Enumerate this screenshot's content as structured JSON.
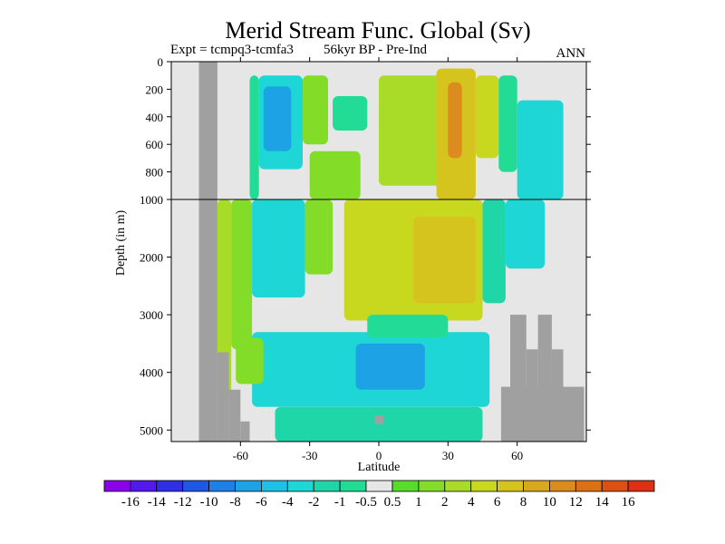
{
  "chart_data": {
    "type": "heatmap",
    "title": "Merid Stream Func. Global (Sv)",
    "subtitle_left": "Expt = tcmpq3-tcmfa3",
    "subtitle_mid": "56kyr BP - Pre-Ind",
    "subtitle_right": "ANN",
    "xlabel": "Latitude",
    "ylabel": "Depth (in m)",
    "xlim": [
      -90,
      90
    ],
    "x_ticks": [
      {
        "value": -60,
        "label": "-60"
      },
      {
        "value": -30,
        "label": "-30"
      },
      {
        "value": 0,
        "label": "0"
      },
      {
        "value": 30,
        "label": "30"
      },
      {
        "value": 60,
        "label": "60"
      }
    ],
    "y_ticks": [
      {
        "value": 0,
        "label": "0"
      },
      {
        "value": 200,
        "label": "200"
      },
      {
        "value": 400,
        "label": "400"
      },
      {
        "value": 600,
        "label": "600"
      },
      {
        "value": 800,
        "label": "800"
      },
      {
        "value": 1000,
        "label": "1000"
      },
      {
        "value": 2000,
        "label": "2000"
      },
      {
        "value": 3000,
        "label": "3000"
      },
      {
        "value": 4000,
        "label": "4000"
      },
      {
        "value": 5000,
        "label": "5000"
      }
    ],
    "y_upper_range": [
      0,
      1000
    ],
    "y_lower_range": [
      1000,
      5200
    ],
    "colorbar": {
      "labels": [
        "-16",
        "-14",
        "-12",
        "-10",
        "-8",
        "-6",
        "-4",
        "-2",
        "-1",
        "-0.5",
        "0.5",
        "1",
        "2",
        "4",
        "6",
        "8",
        "10",
        "12",
        "14",
        "16"
      ],
      "colors": [
        "#8a00e8",
        "#5218ec",
        "#2f30e6",
        "#1f58e4",
        "#1e80e6",
        "#1ea2e6",
        "#1ec0e6",
        "#1ed6d6",
        "#1ed6a8",
        "#22dc96",
        "#e6e6e6",
        "#58dc2c",
        "#82dc28",
        "#a8dc28",
        "#c8d81e",
        "#d6c41e",
        "#d8a81e",
        "#dc8c1e",
        "#dc7014",
        "#dc5014",
        "#dc3014"
      ]
    },
    "land": [
      {
        "lat": [
          -78,
          -70
        ],
        "depth": [
          0,
          5200
        ]
      },
      {
        "lat": [
          -70,
          -65
        ],
        "depth": [
          3650,
          5200
        ]
      },
      {
        "lat": [
          -65,
          -60
        ],
        "depth": [
          4300,
          5200
        ]
      },
      {
        "lat": [
          -60,
          -56
        ],
        "depth": [
          4850,
          5200
        ]
      },
      {
        "lat": [
          -2,
          2
        ],
        "depth": [
          4750,
          4900
        ]
      },
      {
        "lat": [
          53,
          89
        ],
        "depth": [
          4250,
          5200
        ]
      },
      {
        "lat": [
          57,
          64
        ],
        "depth": [
          3000,
          5200
        ]
      },
      {
        "lat": [
          64,
          69
        ],
        "depth": [
          3600,
          5200
        ]
      },
      {
        "lat": [
          69,
          75
        ],
        "depth": [
          3000,
          5200
        ]
      },
      {
        "lat": [
          75,
          80
        ],
        "depth": [
          3600,
          5200
        ]
      }
    ],
    "regions": [
      {
        "lat": [
          -52,
          -33
        ],
        "depth": [
          100,
          780
        ],
        "value": -4
      },
      {
        "lat": [
          -50,
          -38
        ],
        "depth": [
          180,
          650
        ],
        "value": -8
      },
      {
        "lat": [
          -56,
          -52
        ],
        "depth": [
          100,
          1000
        ],
        "value": -1
      },
      {
        "lat": [
          -33,
          -22
        ],
        "depth": [
          100,
          600
        ],
        "value": 1
      },
      {
        "lat": [
          -30,
          -8
        ],
        "depth": [
          650,
          1000
        ],
        "value": 1
      },
      {
        "lat": [
          -20,
          -5
        ],
        "depth": [
          250,
          500
        ],
        "value": -1
      },
      {
        "lat": [
          0,
          35
        ],
        "depth": [
          100,
          900
        ],
        "value": 2
      },
      {
        "lat": [
          25,
          42
        ],
        "depth": [
          50,
          1000
        ],
        "value": 6
      },
      {
        "lat": [
          30,
          36
        ],
        "depth": [
          150,
          700
        ],
        "value": 10
      },
      {
        "lat": [
          42,
          52
        ],
        "depth": [
          100,
          700
        ],
        "value": 4
      },
      {
        "lat": [
          60,
          80
        ],
        "depth": [
          280,
          1000
        ],
        "value": -4
      },
      {
        "lat": [
          52,
          60
        ],
        "depth": [
          100,
          800
        ],
        "value": -1
      },
      {
        "lat": [
          -70,
          -64
        ],
        "depth": [
          1000,
          4400
        ],
        "value": 2
      },
      {
        "lat": [
          -64,
          -55
        ],
        "depth": [
          1000,
          3600
        ],
        "value": 1
      },
      {
        "lat": [
          -55,
          -32
        ],
        "depth": [
          1000,
          2700
        ],
        "value": -4
      },
      {
        "lat": [
          -32,
          -20
        ],
        "depth": [
          1000,
          2300
        ],
        "value": 1
      },
      {
        "lat": [
          -15,
          45
        ],
        "depth": [
          1000,
          3100
        ],
        "value": 4
      },
      {
        "lat": [
          15,
          42
        ],
        "depth": [
          1300,
          2800
        ],
        "value": 6
      },
      {
        "lat": [
          45,
          55
        ],
        "depth": [
          1000,
          2800
        ],
        "value": -2
      },
      {
        "lat": [
          55,
          72
        ],
        "depth": [
          1000,
          2200
        ],
        "value": -4
      },
      {
        "lat": [
          -55,
          48
        ],
        "depth": [
          3300,
          4600
        ],
        "value": -4
      },
      {
        "lat": [
          -10,
          20
        ],
        "depth": [
          3500,
          4300
        ],
        "value": -8
      },
      {
        "lat": [
          -62,
          -50
        ],
        "depth": [
          3400,
          4200
        ],
        "value": 1
      },
      {
        "lat": [
          -45,
          45
        ],
        "depth": [
          4600,
          5200
        ],
        "value": -2
      },
      {
        "lat": [
          -5,
          30
        ],
        "depth": [
          3000,
          3400
        ],
        "value": -1
      }
    ]
  }
}
